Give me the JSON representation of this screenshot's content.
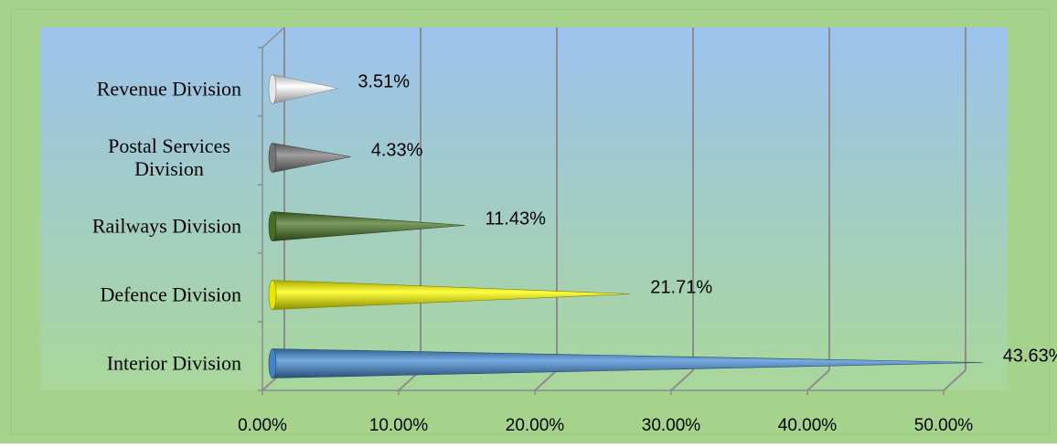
{
  "chart_data": {
    "type": "bar",
    "title": "",
    "xlabel": "",
    "ylabel": "",
    "orientation": "horizontal",
    "bar_shape": "cone",
    "categories": [
      [
        "Revenue Division"
      ],
      [
        "Postal Services",
        "Division"
      ],
      [
        "Railways Division"
      ],
      [
        "Defence Division"
      ],
      [
        "Interior Division"
      ]
    ],
    "values": [
      3.51,
      4.33,
      11.43,
      21.71,
      43.63
    ],
    "value_labels": [
      "3.51%",
      "4.33%",
      "11.43%",
      "21.71%",
      "43.63%"
    ],
    "bar_colors": [
      "#ffffff",
      "#7f7f7f",
      "#4e7a2a",
      "#ffff00",
      "#4a90d9"
    ],
    "xlim": [
      0,
      50
    ],
    "ticks": [
      0,
      10,
      20,
      30,
      40,
      50
    ],
    "tick_labels": [
      "0.00%",
      "10.00%",
      "20.00%",
      "30.00%",
      "40.00%",
      "50.00%"
    ],
    "grid": true,
    "legend": "none",
    "colors": {
      "outer_background": "#a6d38b",
      "plot_top": "#9cc3ee",
      "plot_bottom": "#a9d79a",
      "gridline": "#8c8c8c"
    }
  }
}
